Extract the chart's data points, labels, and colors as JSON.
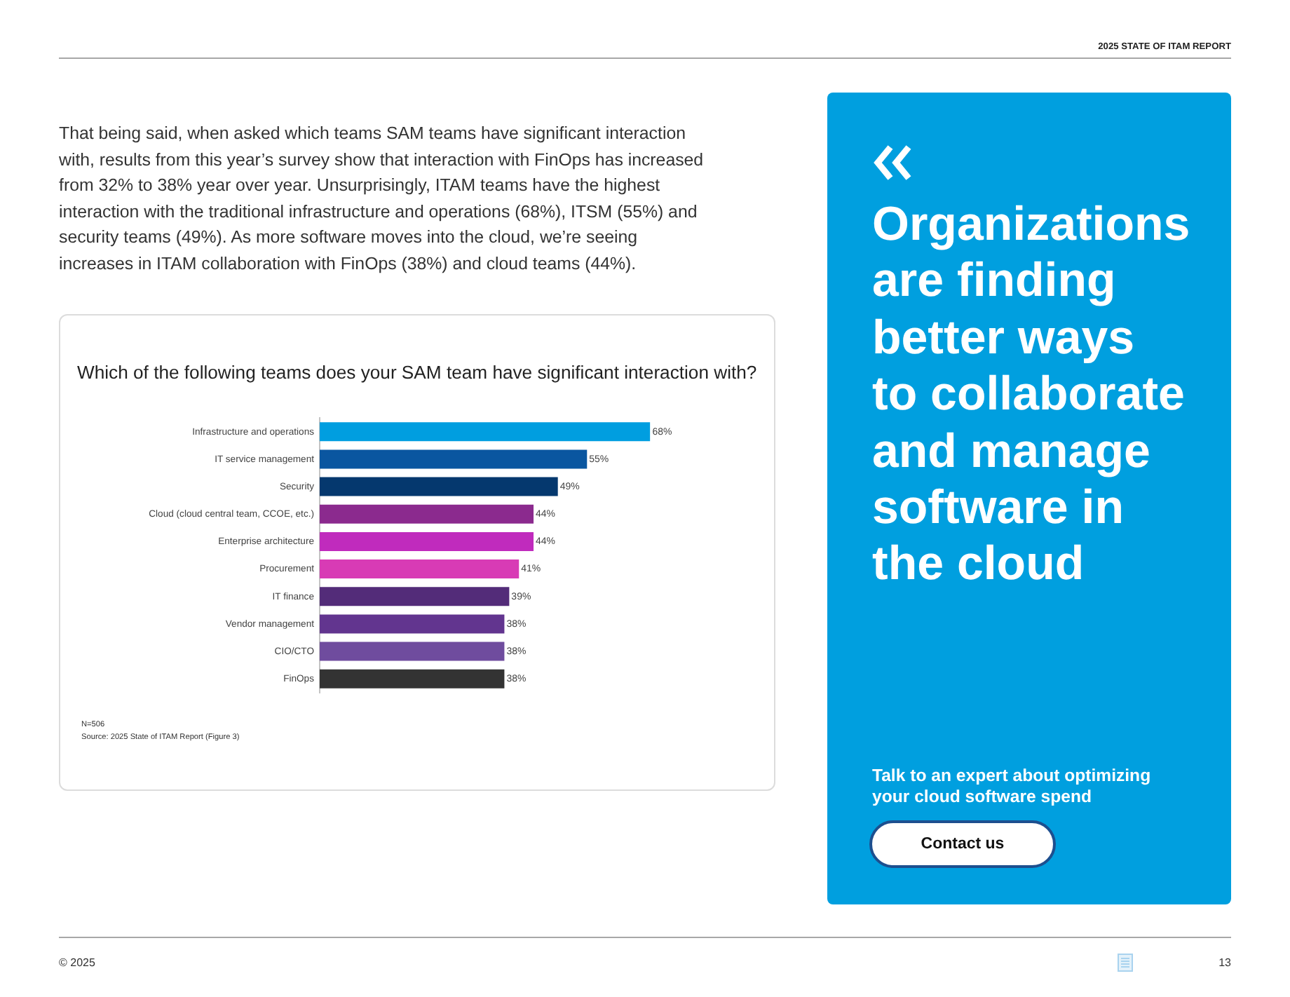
{
  "chart_data": {
    "type": "bar",
    "orientation": "horizontal",
    "title": "Which of the following teams does your SAM team have significant interaction with?",
    "categories": [
      "Infrastructure and operations",
      "IT service management",
      "Security",
      "Cloud (cloud central team, CCOE, etc.)",
      "Enterprise architecture",
      "Procurement",
      "IT finance",
      "Vendor management",
      "CIO/CTO",
      "FinOps"
    ],
    "values": [
      68,
      55,
      49,
      44,
      44,
      41,
      39,
      38,
      38,
      38
    ],
    "colors": [
      "#009ee0",
      "#0a56a0",
      "#05386e",
      "#8b2a8e",
      "#c02bbd",
      "#d83bb5",
      "#532c79",
      "#62358f",
      "#6f4c9e",
      "#333333"
    ],
    "value_labels": [
      "68%",
      "55%",
      "49%",
      "44%",
      "44%",
      "41%",
      "39%",
      "38%",
      "38%",
      "38%"
    ],
    "annotations": [
      "2025 STATE OF ITAM REPORT",
      "That being said, when asked which teams SAM teams have significant interaction with, results from this year’s survey show that interaction with FinOps has increased from 32% to 38% year over year. Unsurprisingly, ITAM teams have the highest interaction with the traditional infrastructure and operations (68%), ITSM (55%) and security teams (49%). As more software moves into the cloud, we’re seeing increases in ITAM collaboration with FinOps (38%) and cloud teams (44%).",
      "N=506",
      "Source: 2025 State of ITAM Report (Figure 3)",
      "Organizations are finding better ways to collaborate and manage software in the cloud",
      "Talk to an expert about optimizing your cloud software spend",
      "Contact us",
      "© 2025",
      "13"
    ]
  }
}
